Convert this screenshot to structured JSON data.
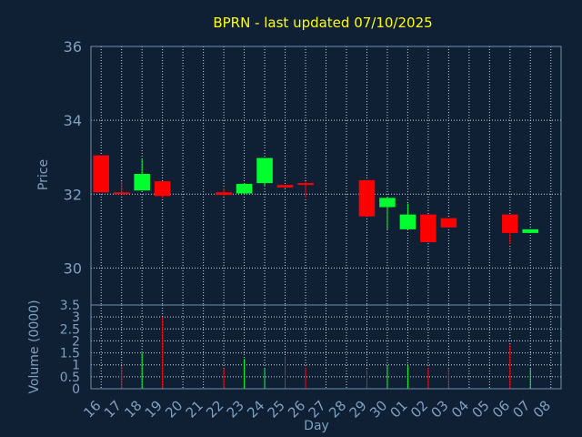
{
  "colors": {
    "background": "#0f2035",
    "plot_border": "#6f8fae",
    "grid": "#c8d2dc",
    "text": "#7f9fbf",
    "title": "#ffff00",
    "up": "#00ff2f",
    "down": "#ff0000"
  },
  "chart_data": [
    {
      "type": "candlestick",
      "title": "BPRN - last updated 07/10/2025",
      "ylabel": "Price",
      "ylim": [
        29,
        36
      ],
      "yticks": [
        30,
        32,
        34,
        36
      ],
      "grid": true,
      "x_categories": [
        "16",
        "17",
        "18",
        "19",
        "20",
        "21",
        "22",
        "23",
        "24",
        "25",
        "26",
        "27",
        "28",
        "29",
        "30",
        "01",
        "02",
        "03",
        "04",
        "05",
        "06",
        "07",
        "08"
      ],
      "candles": [
        {
          "day": "16",
          "open": 33.05,
          "high": 33.05,
          "low": 32.05,
          "close": 32.05
        },
        {
          "day": "17",
          "open": 32.05,
          "high": 32.35,
          "low": 32.0,
          "close": 32.02
        },
        {
          "day": "18",
          "open": 32.1,
          "high": 32.95,
          "low": 32.1,
          "close": 32.55
        },
        {
          "day": "19",
          "open": 32.35,
          "high": 32.35,
          "low": 31.9,
          "close": 31.95
        },
        {
          "day": "22",
          "open": 32.05,
          "high": 32.15,
          "low": 31.95,
          "close": 31.98
        },
        {
          "day": "23",
          "open": 32.02,
          "high": 32.3,
          "low": 32.0,
          "close": 32.28
        },
        {
          "day": "24",
          "open": 32.3,
          "high": 32.98,
          "low": 32.2,
          "close": 32.98
        },
        {
          "day": "25",
          "open": 32.25,
          "high": 32.25,
          "low": 32.15,
          "close": 32.18
        },
        {
          "day": "26",
          "open": 32.3,
          "high": 32.35,
          "low": 31.9,
          "close": 32.25
        },
        {
          "day": "29",
          "open": 32.38,
          "high": 32.38,
          "low": 31.4,
          "close": 31.4
        },
        {
          "day": "30",
          "open": 31.65,
          "high": 31.9,
          "low": 31.05,
          "close": 31.9
        },
        {
          "day": "01",
          "open": 31.05,
          "high": 31.75,
          "low": 31.05,
          "close": 31.45
        },
        {
          "day": "02",
          "open": 31.45,
          "high": 31.45,
          "low": 30.7,
          "close": 30.7
        },
        {
          "day": "03",
          "open": 31.35,
          "high": 31.35,
          "low": 31.1,
          "close": 31.1
        },
        {
          "day": "06",
          "open": 31.45,
          "high": 31.45,
          "low": 30.65,
          "close": 30.95
        },
        {
          "day": "07",
          "open": 30.95,
          "high": 31.05,
          "low": 30.95,
          "close": 31.05
        }
      ]
    },
    {
      "type": "bar",
      "xlabel": "Day",
      "ylabel": "Volume (0000)",
      "ylim": [
        0,
        3.5
      ],
      "yticks": [
        0,
        0.5,
        1,
        1.5,
        2,
        2.5,
        3,
        3.5
      ],
      "grid": true,
      "x_categories": [
        "16",
        "17",
        "18",
        "19",
        "20",
        "21",
        "22",
        "23",
        "24",
        "25",
        "26",
        "27",
        "28",
        "29",
        "30",
        "01",
        "02",
        "03",
        "04",
        "05",
        "06",
        "07",
        "08"
      ],
      "bars": [
        {
          "day": "17",
          "value": 0.95,
          "direction": "down"
        },
        {
          "day": "18",
          "value": 1.5,
          "direction": "up"
        },
        {
          "day": "19",
          "value": 3.0,
          "direction": "down"
        },
        {
          "day": "22",
          "value": 0.85,
          "direction": "down"
        },
        {
          "day": "23",
          "value": 1.25,
          "direction": "up"
        },
        {
          "day": "24",
          "value": 0.85,
          "direction": "up"
        },
        {
          "day": "25",
          "value": 1.35,
          "direction": "down"
        },
        {
          "day": "26",
          "value": 0.9,
          "direction": "down"
        },
        {
          "day": "29",
          "value": 0.8,
          "direction": "down"
        },
        {
          "day": "30",
          "value": 0.95,
          "direction": "up"
        },
        {
          "day": "01",
          "value": 0.95,
          "direction": "up"
        },
        {
          "day": "02",
          "value": 0.9,
          "direction": "down"
        },
        {
          "day": "03",
          "value": 0.85,
          "direction": "down"
        },
        {
          "day": "06",
          "value": 1.85,
          "direction": "down"
        },
        {
          "day": "07",
          "value": 0.85,
          "direction": "up"
        }
      ]
    }
  ]
}
